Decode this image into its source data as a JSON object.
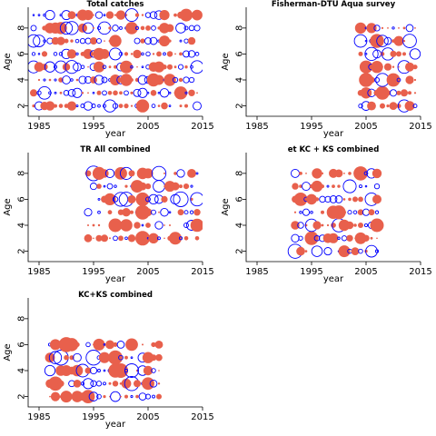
{
  "colors": {
    "positive": "#e8604c",
    "negative": "#0000ff",
    "axis": "#000000"
  },
  "chart_data": [
    {
      "type": "scatter",
      "title": "Total catches",
      "xlabel": "year",
      "ylabel": "Age",
      "xlim": [
        1983,
        2015
      ],
      "ylim": [
        1.2,
        9.6
      ],
      "xticks": [
        1985,
        1995,
        2005,
        2015
      ],
      "yticks": [
        2,
        4,
        6,
        8
      ],
      "ages": [
        2,
        3,
        4,
        5,
        6,
        7,
        8,
        9
      ],
      "years": [
        1984,
        2014
      ],
      "seed": 11,
      "density": 0.95,
      "max_radius": 6.5
    },
    {
      "type": "scatter",
      "title": "Fisherman-DTU Aqua survey",
      "xlabel": "year",
      "ylabel": "Age",
      "xlim": [
        1983,
        2015
      ],
      "ylim": [
        1.2,
        9.6
      ],
      "xticks": [
        1985,
        1995,
        2005,
        2015
      ],
      "yticks": [
        2,
        4,
        6,
        8
      ],
      "ages": [
        2,
        3,
        4,
        5,
        6,
        7,
        8
      ],
      "years": [
        2004,
        2014
      ],
      "seed": 23,
      "density": 0.9,
      "max_radius": 7
    },
    {
      "type": "scatter",
      "title": "TR All combined",
      "xlabel": "year",
      "ylabel": "Age",
      "xlim": [
        1983,
        2015
      ],
      "ylim": [
        1.2,
        9.6
      ],
      "xticks": [
        1985,
        1995,
        2005,
        2015
      ],
      "yticks": [
        2,
        4,
        6,
        8
      ],
      "ages": [
        3,
        4,
        5,
        6,
        7,
        8
      ],
      "years": [
        1994,
        2014
      ],
      "seed": 37,
      "density": 0.8,
      "max_radius": 7.5
    },
    {
      "type": "scatter",
      "title": "et KC + KS combined",
      "xlabel": "year",
      "ylabel": "Age",
      "xlim": [
        1983,
        2015
      ],
      "ylim": [
        1.2,
        9.6
      ],
      "xticks": [
        1985,
        1995,
        2005,
        2015
      ],
      "yticks": [
        2,
        4,
        6,
        8
      ],
      "ages": [
        2,
        3,
        4,
        5,
        6,
        7,
        8
      ],
      "years": [
        1992,
        2007
      ],
      "seed": 41,
      "density": 0.9,
      "max_radius": 7
    },
    {
      "type": "scatter",
      "title": "KC+KS combined",
      "xlabel": "year",
      "ylabel": "Age",
      "xlim": [
        1983,
        2015
      ],
      "ylim": [
        1.2,
        9.6
      ],
      "xticks": [
        1985,
        1995,
        2005,
        2015
      ],
      "yticks": [
        2,
        4,
        6,
        8
      ],
      "ages": [
        2,
        3,
        4,
        5,
        6
      ],
      "years": [
        1987,
        2007
      ],
      "seed": 53,
      "density": 0.9,
      "max_radius": 7.5
    }
  ]
}
